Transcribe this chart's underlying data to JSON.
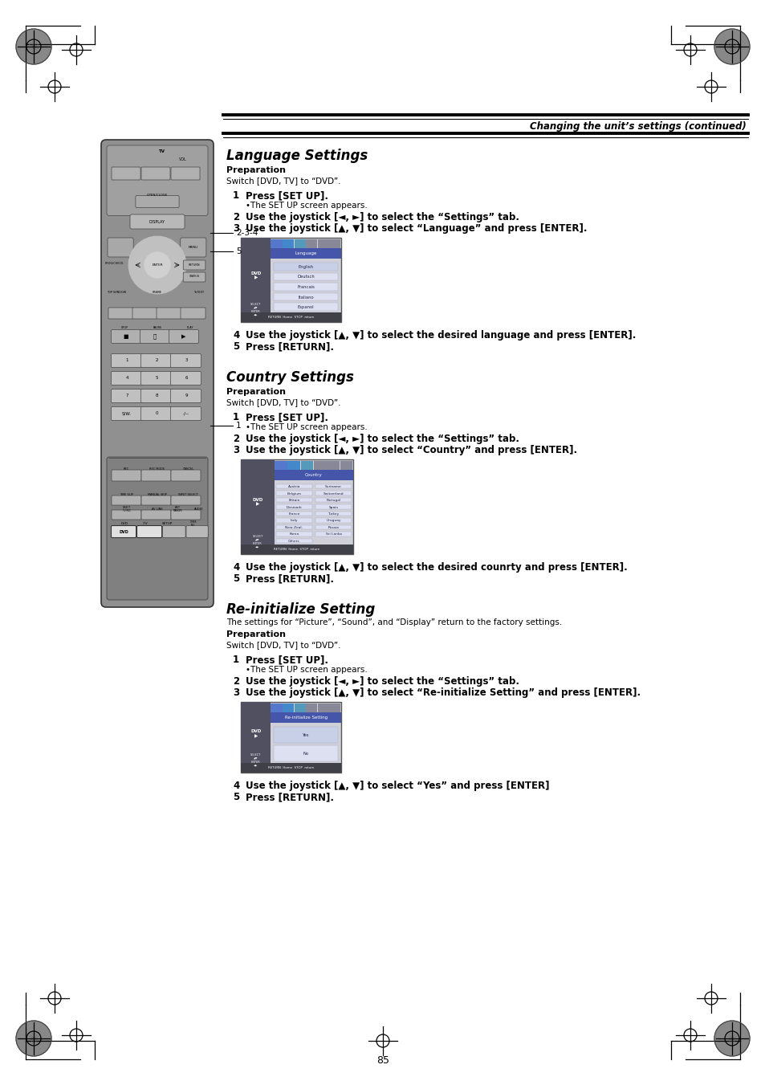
{
  "page_bg": "#ffffff",
  "page_number": "85",
  "header_text": "Changing the unit’s settings (continued)",
  "section1_title": "Language Settings",
  "section1_prep_label": "Preparation",
  "section1_prep_text": "Switch [DVD, TV] to “DVD”.",
  "section2_title": "Country Settings",
  "section2_prep_label": "Preparation",
  "section2_prep_text": "Switch [DVD, TV] to “DVD”.",
  "section3_title": "Re-initialize Setting",
  "section3_intro": "The settings for “Picture”, “Sound”, and “Display” return to the factory settings.",
  "section3_prep_label": "Preparation",
  "section3_prep_text": "Switch [DVD, TV] to “DVD”.",
  "label_234": "2-3-4",
  "label_5": "5",
  "label_1": "1",
  "text_color": "#000000"
}
